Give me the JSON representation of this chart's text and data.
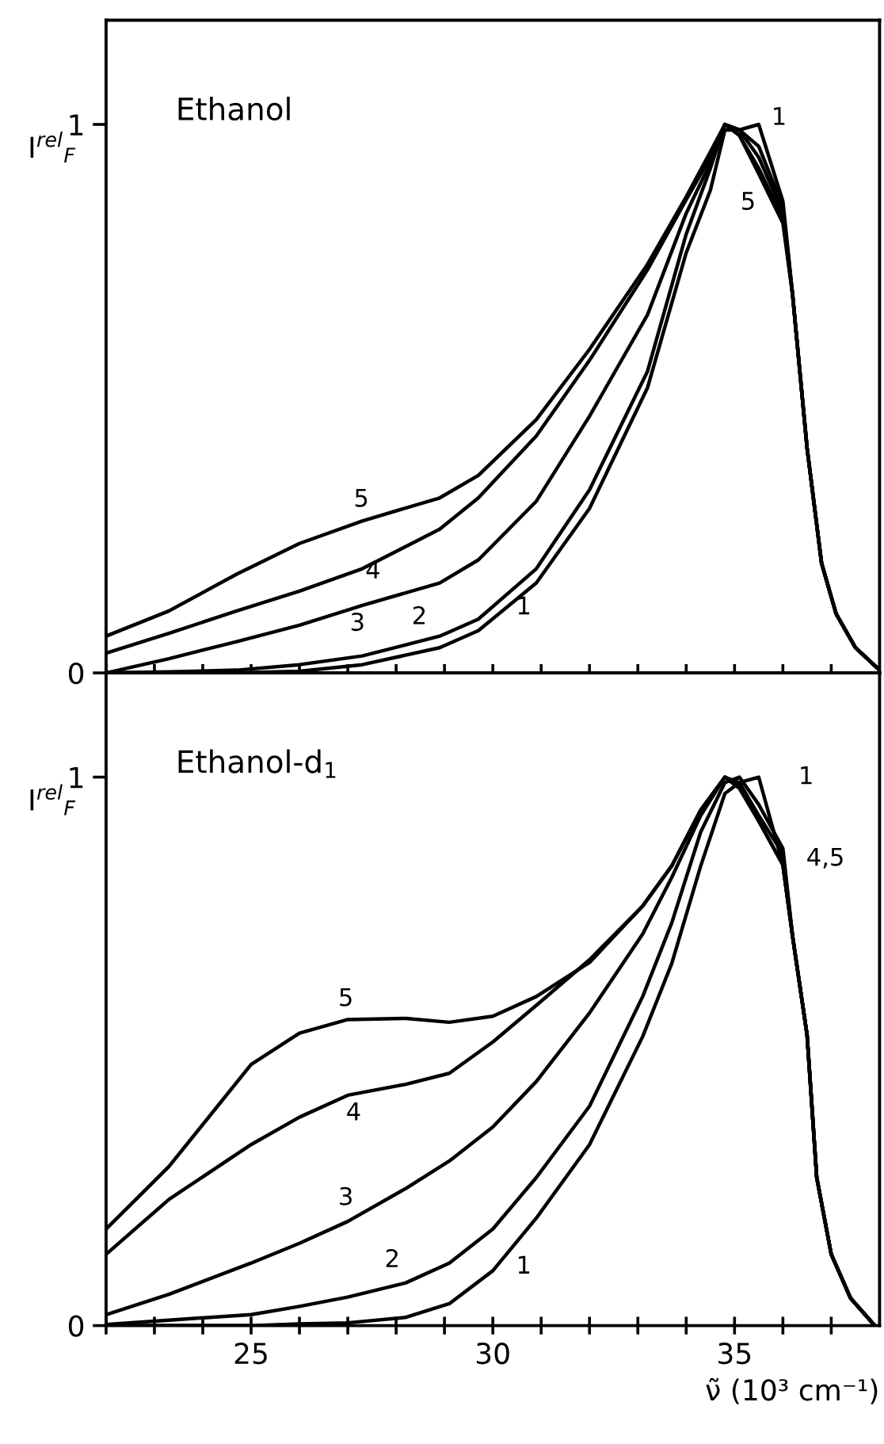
{
  "chart_data": [
    {
      "type": "line",
      "title": "Ethanol",
      "ylabel": "I$^{rel}$$_{F}$",
      "xlim": [
        22,
        38
      ],
      "ylim": [
        0,
        1.19
      ],
      "yticks": [
        0,
        1
      ],
      "tick_labels": "y",
      "grid": false,
      "legend": false,
      "line_style": "solid",
      "marker": "none",
      "xticks": [
        {
          "value": 22,
          "label": null
        },
        {
          "value": 23,
          "label": null
        },
        {
          "value": 24,
          "label": null
        },
        {
          "value": 25,
          "label": null
        },
        {
          "value": 26,
          "label": null
        },
        {
          "value": 27,
          "label": null
        },
        {
          "value": 28,
          "label": null
        },
        {
          "value": 29,
          "label": null
        },
        {
          "value": 30,
          "label": null
        },
        {
          "value": 31,
          "label": null
        },
        {
          "value": 32,
          "label": null
        },
        {
          "value": 33,
          "label": null
        },
        {
          "value": 34,
          "label": null
        },
        {
          "value": 35,
          "label": null
        },
        {
          "value": 36,
          "label": null
        },
        {
          "value": 37,
          "label": null
        }
      ],
      "x": [
        22,
        23.3,
        24.7,
        26,
        27.3,
        28.9,
        29.7,
        30.9,
        32,
        33.2,
        34,
        34.5,
        34.8,
        35.1,
        35.5,
        36,
        36.2,
        36.5,
        36.8,
        37.1,
        37.5,
        38
      ],
      "series": [
        {
          "color": "#000000",
          "values": [
            0,
            0,
            0,
            0.003,
            0.015,
            0.046,
            0.077,
            0.164,
            0.3,
            0.52,
            0.766,
            0.88,
            0.99,
            0.99,
            1.0,
            0.86,
            0.69,
            0.41,
            0.2,
            0.108,
            0.046,
            0.005
          ]
        },
        {
          "color": "#000000",
          "values": [
            0,
            0.002,
            0.005,
            0.015,
            0.031,
            0.067,
            0.098,
            0.19,
            0.334,
            0.55,
            0.8,
            0.92,
            1.0,
            0.99,
            0.96,
            0.85,
            0.69,
            0.41,
            0.2,
            0.108,
            0.046,
            0.005
          ]
        },
        {
          "color": "#000000",
          "values": [
            0,
            0.026,
            0.057,
            0.087,
            0.123,
            0.164,
            0.206,
            0.313,
            0.468,
            0.653,
            0.838,
            0.93,
            1.0,
            0.99,
            0.94,
            0.84,
            0.69,
            0.41,
            0.2,
            0.108,
            0.046,
            0.005
          ]
        },
        {
          "color": "#000000",
          "values": [
            0.036,
            0.072,
            0.113,
            0.149,
            0.19,
            0.262,
            0.319,
            0.432,
            0.57,
            0.735,
            0.863,
            0.94,
            1.0,
            0.98,
            0.92,
            0.83,
            0.69,
            0.41,
            0.2,
            0.108,
            0.046,
            0.005
          ]
        },
        {
          "color": "#000000",
          "values": [
            0.067,
            0.113,
            0.18,
            0.236,
            0.277,
            0.319,
            0.36,
            0.462,
            0.59,
            0.745,
            0.868,
            0.95,
            1.0,
            0.98,
            0.91,
            0.82,
            0.69,
            0.41,
            0.2,
            0.108,
            0.046,
            0.005
          ]
        }
      ],
      "annotations": [
        "5",
        "4",
        "3",
        "2",
        "1",
        "1",
        "5"
      ]
    },
    {
      "type": "line",
      "title": "Ethanol-d$_{1}$",
      "ylabel": "I$^{rel}$$_{F}$",
      "xlabel": "ν̃ (10³ cm⁻¹)",
      "xlim": [
        22,
        38
      ],
      "ylim": [
        0,
        1.19
      ],
      "yticks": [
        0,
        1
      ],
      "grid": false,
      "legend": false,
      "line_style": "solid",
      "marker": "none",
      "xticks": [
        {
          "value": 22,
          "label": null
        },
        {
          "value": 23,
          "label": null
        },
        {
          "value": 24,
          "label": null
        },
        25,
        {
          "value": 26,
          "label": null
        },
        {
          "value": 27,
          "label": null
        },
        {
          "value": 28,
          "label": null
        },
        {
          "value": 29,
          "label": null
        },
        30,
        {
          "value": 31,
          "label": null
        },
        {
          "value": 32,
          "label": null
        },
        {
          "value": 33,
          "label": null
        },
        {
          "value": 34,
          "label": null
        },
        35,
        {
          "value": 36,
          "label": null
        },
        {
          "value": 37,
          "label": null
        }
      ],
      "x": [
        22,
        23.3,
        25,
        26,
        27,
        28.2,
        29.1,
        30,
        30.9,
        32,
        33.1,
        33.7,
        34.3,
        34.8,
        35.1,
        35.5,
        36,
        36.2,
        36.5,
        36.7,
        37,
        37.4,
        37.9
      ],
      "series": [
        {
          "color": "#000000",
          "values": [
            0,
            0,
            0,
            0.003,
            0.005,
            0.015,
            0.04,
            0.1,
            0.196,
            0.33,
            0.527,
            0.66,
            0.838,
            0.97,
            0.99,
            1.0,
            0.84,
            0.71,
            0.53,
            0.27,
            0.13,
            0.05,
            0
          ]
        },
        {
          "color": "#000000",
          "values": [
            0.002,
            0.01,
            0.02,
            0.035,
            0.052,
            0.078,
            0.114,
            0.176,
            0.27,
            0.4,
            0.6,
            0.734,
            0.9,
            0.99,
            1.0,
            0.95,
            0.87,
            0.71,
            0.53,
            0.27,
            0.13,
            0.05,
            0
          ]
        },
        {
          "color": "#000000",
          "values": [
            0.02,
            0.057,
            0.114,
            0.15,
            0.19,
            0.25,
            0.3,
            0.362,
            0.445,
            0.57,
            0.714,
            0.817,
            0.93,
            1.0,
            0.99,
            0.93,
            0.86,
            0.71,
            0.53,
            0.27,
            0.13,
            0.05,
            0
          ]
        },
        {
          "color": "#000000",
          "values": [
            0.13,
            0.23,
            0.33,
            0.38,
            0.42,
            0.44,
            0.46,
            0.517,
            0.584,
            0.667,
            0.765,
            0.838,
            0.94,
            1.0,
            0.98,
            0.92,
            0.84,
            0.71,
            0.53,
            0.27,
            0.13,
            0.05,
            0
          ]
        },
        {
          "color": "#000000",
          "values": [
            0.176,
            0.29,
            0.476,
            0.533,
            0.558,
            0.56,
            0.553,
            0.564,
            0.6,
            0.662,
            0.765,
            0.838,
            0.94,
            1.0,
            0.98,
            0.92,
            0.84,
            0.71,
            0.53,
            0.27,
            0.13,
            0.05,
            0
          ]
        }
      ],
      "annotations": [
        "5",
        "4",
        "3",
        "2",
        "1",
        "1",
        "4,5"
      ]
    }
  ]
}
